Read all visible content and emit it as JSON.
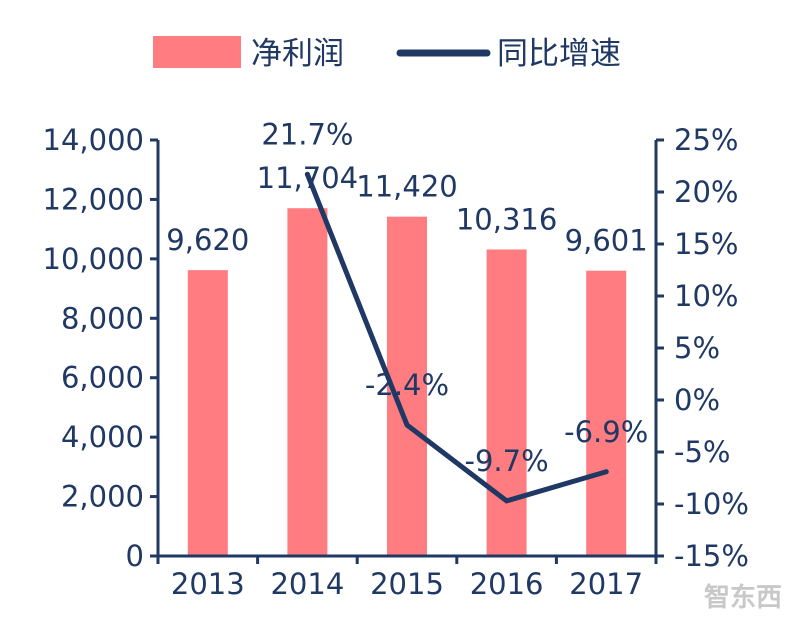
{
  "chart_data": {
    "type": "bar",
    "categories": [
      "2013",
      "2014",
      "2015",
      "2016",
      "2017"
    ],
    "series": [
      {
        "name": "净利润",
        "type": "bar",
        "axis": "left",
        "values": [
          9620,
          11704,
          11420,
          10316,
          9601
        ],
        "labels": [
          "9,620",
          "11,704",
          "11,420",
          "10,316",
          "9,601"
        ],
        "color": "#ff7c80"
      },
      {
        "name": "同比增速",
        "type": "line",
        "axis": "right",
        "values": [
          21.7,
          -2.4,
          -9.7,
          -6.9
        ],
        "x": [
          "2014",
          "2015",
          "2016",
          "2017"
        ],
        "labels": [
          "21.7%",
          "-2.4%",
          "-9.7%",
          "-6.9%"
        ],
        "color": "#1f3864"
      }
    ],
    "y_left": {
      "ylim": [
        0,
        14000
      ],
      "ticks": [
        0,
        2000,
        4000,
        6000,
        8000,
        10000,
        12000,
        14000
      ],
      "tick_labels": [
        "0",
        "2,000",
        "4,000",
        "6,000",
        "8,000",
        "10,000",
        "12,000",
        "14,000"
      ]
    },
    "y_right": {
      "ylim": [
        -15,
        25
      ],
      "ticks": [
        -15,
        -10,
        -5,
        0,
        5,
        10,
        15,
        20,
        25
      ],
      "tick_labels": [
        "-15%",
        "-10%",
        "-5%",
        "0%",
        "5%",
        "10%",
        "15%",
        "20%",
        "25%"
      ]
    },
    "legend_position": "top",
    "grid": false,
    "axis_color": "#1f3864"
  },
  "watermark": "智东西"
}
